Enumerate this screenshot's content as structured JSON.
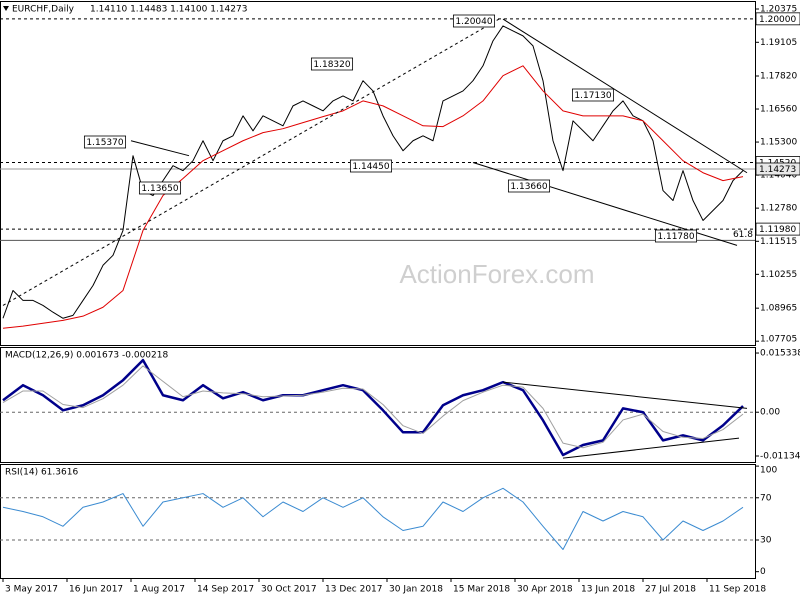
{
  "chart_data": [
    {
      "type": "line",
      "symbol": "EURCHF,Daily",
      "ohlc": "1.14110 1.14483 1.14100 1.14273",
      "watermark": "ActionForex.com",
      "xlim": [
        -1.5,
        376
      ],
      "ylim": [
        1.0756,
        1.2068
      ],
      "yticks": [
        1.20375,
        1.19105,
        {
          "value": 1.1782,
          "label": "1.17820"
        },
        {
          "value": 1.1656,
          "label": "1.16560"
        },
        {
          "value": 1.153,
          "label": "1.15300"
        },
        {
          "value": 1.1404,
          "label": "1.14040"
        },
        {
          "value": 1.1278,
          "label": "1.12780"
        },
        1.11515,
        1.10255,
        1.08965,
        1.07705
      ],
      "series": [
        {
          "color": "#000000",
          "x": [
            0,
            5,
            10,
            15,
            20,
            25,
            30,
            35,
            40,
            45,
            50,
            55,
            60,
            65,
            70,
            75,
            80,
            85,
            90,
            95,
            100,
            105,
            110,
            115,
            120,
            125,
            130,
            135,
            140,
            145,
            150,
            155,
            160,
            165,
            170,
            175,
            180,
            185,
            190,
            195,
            200,
            205,
            210,
            215,
            220,
            225,
            230,
            235,
            240,
            245,
            250,
            255,
            260,
            265,
            270,
            275,
            280,
            285,
            290,
            295,
            300,
            305,
            310,
            315,
            320,
            325,
            330,
            335,
            340,
            345,
            350,
            355,
            360,
            365,
            370
          ],
          "values": [
            1.0858,
            1.0964,
            1.0926,
            1.0926,
            1.0907,
            1.0881,
            1.0858,
            1.0869,
            1.0926,
            1.0983,
            1.106,
            1.1098,
            1.1193,
            1.1478,
            1.1345,
            1.1326,
            1.1383,
            1.144,
            1.1421,
            1.1459,
            1.1535,
            1.1459,
            1.1535,
            1.1554,
            1.163,
            1.1573,
            1.163,
            1.1611,
            1.1592,
            1.1668,
            1.1687,
            1.1668,
            1.1649,
            1.1687,
            1.1706,
            1.1687,
            1.1764,
            1.1725,
            1.163,
            1.1554,
            1.1497,
            1.1535,
            1.1554,
            1.1535,
            1.1687,
            1.1706,
            1.1725,
            1.1764,
            1.1821,
            1.1916,
            1.1973,
            1.1954,
            1.1935,
            1.1897,
            1.1764,
            1.1535,
            1.1421,
            1.1611,
            1.1573,
            1.1535,
            1.1592,
            1.1649,
            1.1687,
            1.163,
            1.1611,
            1.1535,
            1.1345,
            1.1307,
            1.1421,
            1.1307,
            1.1231,
            1.1269,
            1.1307,
            1.1383,
            1.1421
          ]
        },
        {
          "color": "#e00000",
          "x": [
            0,
            10,
            20,
            30,
            40,
            50,
            60,
            70,
            80,
            90,
            100,
            110,
            120,
            130,
            140,
            150,
            160,
            170,
            180,
            190,
            200,
            210,
            220,
            230,
            240,
            250,
            260,
            270,
            280,
            290,
            300,
            310,
            320,
            330,
            340,
            350,
            360,
            370
          ],
          "values": [
            1.082,
            1.0828,
            1.0839,
            1.085,
            1.0866,
            1.09,
            1.0964,
            1.1193,
            1.1326,
            1.1391,
            1.1459,
            1.1497,
            1.1535,
            1.1566,
            1.1581,
            1.1604,
            1.1627,
            1.1649,
            1.1687,
            1.1668,
            1.163,
            1.1592,
            1.1589,
            1.163,
            1.1687,
            1.1783,
            1.1821,
            1.1725,
            1.1649,
            1.163,
            1.163,
            1.163,
            1.1611,
            1.1535,
            1.1459,
            1.1413,
            1.1383,
            1.1398
          ]
        }
      ],
      "levels": {
        "values": [
          1.2,
          1.1452,
          1.14273,
          1.1198
        ],
        "value_labels": [
          "1.20000",
          "1.14520",
          "1.14273",
          "1.11980"
        ],
        "styles": [
          "dashed",
          "dashed",
          "solid",
          "dashed"
        ]
      },
      "fib": {
        "ratio": 61.8,
        "price": 1.1155
      },
      "trendlines": [
        {
          "x": [
            0,
            248
          ],
          "values": [
            1.0907,
            1.1999
          ],
          "style": "dashed"
        },
        {
          "x": [
            250,
            372
          ],
          "values": [
            1.1999,
            1.1413
          ],
          "style": "solid"
        },
        {
          "x": [
            235,
            367
          ],
          "values": [
            1.1452,
            1.1136
          ],
          "style": "solid"
        },
        {
          "x": [
            64,
            93
          ],
          "values": [
            1.1535,
            1.1478
          ],
          "style": "solid"
        }
      ],
      "annotations": [
        "1.15370",
        "1.13650",
        "1.18320",
        "1.14450",
        "1.20040",
        "1.13660",
        "1.17130",
        "1.11780"
      ]
    },
    {
      "type": "line",
      "title": "MACD(12,26,9) 0.001673 -0.000218",
      "xlim": [
        -1.5,
        376
      ],
      "ylim": [
        -0.0129,
        0.0169
      ],
      "yticks": [
        0.015338,
        {
          "value": 0,
          "label": "0.00"
        },
        -0.011344
      ],
      "levels": [
        0
      ],
      "series": [
        {
          "color": "#00008b",
          "x": [
            0,
            10,
            20,
            30,
            40,
            50,
            60,
            70,
            80,
            90,
            100,
            110,
            120,
            130,
            140,
            150,
            160,
            170,
            180,
            190,
            200,
            210,
            220,
            230,
            240,
            250,
            260,
            270,
            280,
            290,
            300,
            310,
            320,
            330,
            340,
            350,
            360,
            370
          ],
          "values": [
            0.0031,
            0.007,
            0.0044,
            0.0005,
            0.0018,
            0.0044,
            0.0083,
            0.0135,
            0.0044,
            0.0031,
            0.007,
            0.0036,
            0.0052,
            0.0031,
            0.0044,
            0.0044,
            0.0057,
            0.007,
            0.0057,
            0.0005,
            -0.0052,
            -0.0052,
            0.0018,
            0.0044,
            0.0057,
            0.0078,
            0.0057,
            -0.0021,
            -0.0111,
            -0.0085,
            -0.0073,
            0.001,
            0,
            -0.0073,
            -0.006,
            -0.0073,
            -0.0034,
            0.0016
          ]
        },
        {
          "color": "#a0a0a0",
          "x": [
            0,
            10,
            20,
            30,
            40,
            50,
            60,
            70,
            80,
            90,
            100,
            110,
            120,
            130,
            140,
            150,
            160,
            170,
            180,
            190,
            200,
            210,
            220,
            230,
            240,
            250,
            260,
            270,
            280,
            290,
            300,
            310,
            320,
            330,
            340,
            350,
            360,
            370
          ],
          "values": [
            0.0025,
            0.0055,
            0.0055,
            0.002,
            0.0012,
            0.0035,
            0.007,
            0.012,
            0.008,
            0.004,
            0.0055,
            0.005,
            0.0048,
            0.004,
            0.0042,
            0.0044,
            0.0052,
            0.0062,
            0.006,
            0.002,
            -0.0035,
            -0.0055,
            -0.001,
            0.003,
            0.0052,
            0.007,
            0.0065,
            0.001,
            -0.008,
            -0.0092,
            -0.0078,
            -0.002,
            -0.0005,
            -0.005,
            -0.0065,
            -0.0068,
            -0.0045,
            -0.0005
          ]
        }
      ],
      "trendlines": [
        {
          "x": [
            250,
            372
          ],
          "values": [
            0.0078,
            0.001
          ],
          "style": "solid"
        },
        {
          "x": [
            280,
            368
          ],
          "values": [
            -0.0119,
            -0.0067
          ],
          "style": "solid"
        }
      ]
    },
    {
      "type": "line",
      "title": "RSI(14) 61.3616",
      "xlim": [
        -1.5,
        376
      ],
      "ylim": [
        -6,
        102
      ],
      "yticks": [
        100,
        70,
        30,
        0
      ],
      "levels": [
        70,
        30
      ],
      "series": [
        {
          "color": "#3b8bd1",
          "x": [
            0,
            10,
            20,
            30,
            40,
            50,
            60,
            70,
            80,
            90,
            100,
            110,
            120,
            130,
            140,
            150,
            160,
            170,
            180,
            190,
            200,
            210,
            220,
            230,
            240,
            250,
            260,
            270,
            280,
            290,
            300,
            310,
            320,
            330,
            340,
            350,
            360,
            370
          ],
          "values": [
            61,
            57,
            52,
            43,
            61,
            66,
            74,
            43,
            66,
            70,
            74,
            61,
            70,
            52,
            66,
            57,
            70,
            61,
            70,
            52,
            39,
            43,
            66,
            57,
            70,
            79,
            66,
            43,
            21,
            57,
            48,
            57,
            52,
            30,
            48,
            39,
            48,
            61
          ]
        }
      ],
      "xticks": [
        {
          "value": 0,
          "label": "3 May 2017"
        },
        {
          "value": 32,
          "label": "16 Jun 2017"
        },
        {
          "value": 64,
          "label": "1 Aug 2017"
        },
        {
          "value": 96,
          "label": "14 Sep 2017"
        },
        {
          "value": 128,
          "label": "30 Oct 2017"
        },
        {
          "value": 160,
          "label": "13 Dec 2017"
        },
        {
          "value": 192,
          "label": "30 Jan 2018"
        },
        {
          "value": 224,
          "label": "15 Mar 2018"
        },
        {
          "value": 256,
          "label": "30 Apr 2018"
        },
        {
          "value": 288,
          "label": "13 Jun 2018"
        },
        {
          "value": 320,
          "label": "27 Jul 2018"
        },
        {
          "value": 352,
          "label": "11 Sep 2018"
        }
      ]
    }
  ]
}
